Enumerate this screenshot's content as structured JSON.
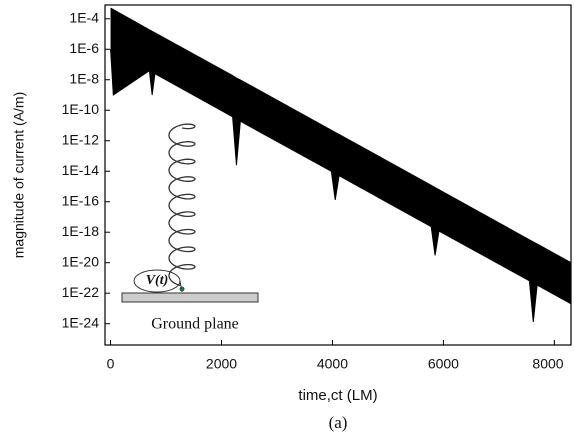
{
  "chart_data": {
    "type": "band",
    "x_label": "time,ct  (LM)",
    "y_label": "magnitude of current (A/m)",
    "caption": "(a)",
    "annotations": {
      "source": "V(t)",
      "ground": "Ground plane"
    },
    "log_y": true,
    "color": "#000000",
    "x": [
      0,
      50,
      700,
      750,
      800,
      2200,
      2270,
      2340,
      3980,
      4050,
      4120,
      5780,
      5850,
      5920,
      7550,
      7620,
      7690,
      8300
    ],
    "series": [
      {
        "values": [
          0.0005,
          0.0004,
          1.9e-05,
          1.5e-05,
          1.2e-05,
          1.9e-08,
          1.3e-08,
          9.8e-09,
          4.9e-12,
          3.5e-12,
          2.6e-12,
          1.2e-15,
          8.5e-16,
          6.2e-16,
          3.2e-19,
          2.3e-19,
          1.7e-19,
          1e-20
        ]
      },
      {
        "values": [
          1e-06,
          1e-09,
          3.9e-08,
          1e-09,
          2.5e-08,
          3.7e-11,
          2.5e-14,
          1.9e-11,
          9.8e-15,
          1.3e-16,
          5.1e-15,
          2.3e-18,
          3e-20,
          1.2e-18,
          6.5e-22,
          1.3e-24,
          3.4e-22,
          2e-23
        ]
      }
    ],
    "xlim": [
      -100,
      8300
    ],
    "ylim": [
      4e-26,
      0.0008
    ],
    "xticks": [
      0,
      2000,
      4000,
      6000,
      8000
    ],
    "yticks": [
      {
        "value": 0.0001,
        "label": "1E-4"
      },
      {
        "value": 1e-06,
        "label": "1E-6"
      },
      {
        "value": 1e-08,
        "label": "1E-8"
      },
      {
        "value": 1e-10,
        "label": "1E-10"
      },
      {
        "value": 1e-12,
        "label": "1E-12"
      },
      {
        "value": 1e-14,
        "label": "1E-14"
      },
      {
        "value": 1e-16,
        "label": "1E-16"
      },
      {
        "value": 1e-18,
        "label": "1E-18"
      },
      {
        "value": 1e-20,
        "label": "1E-20"
      },
      {
        "value": 1e-22,
        "label": "1E-22"
      },
      {
        "value": 1e-24,
        "label": "1E-24"
      }
    ]
  }
}
